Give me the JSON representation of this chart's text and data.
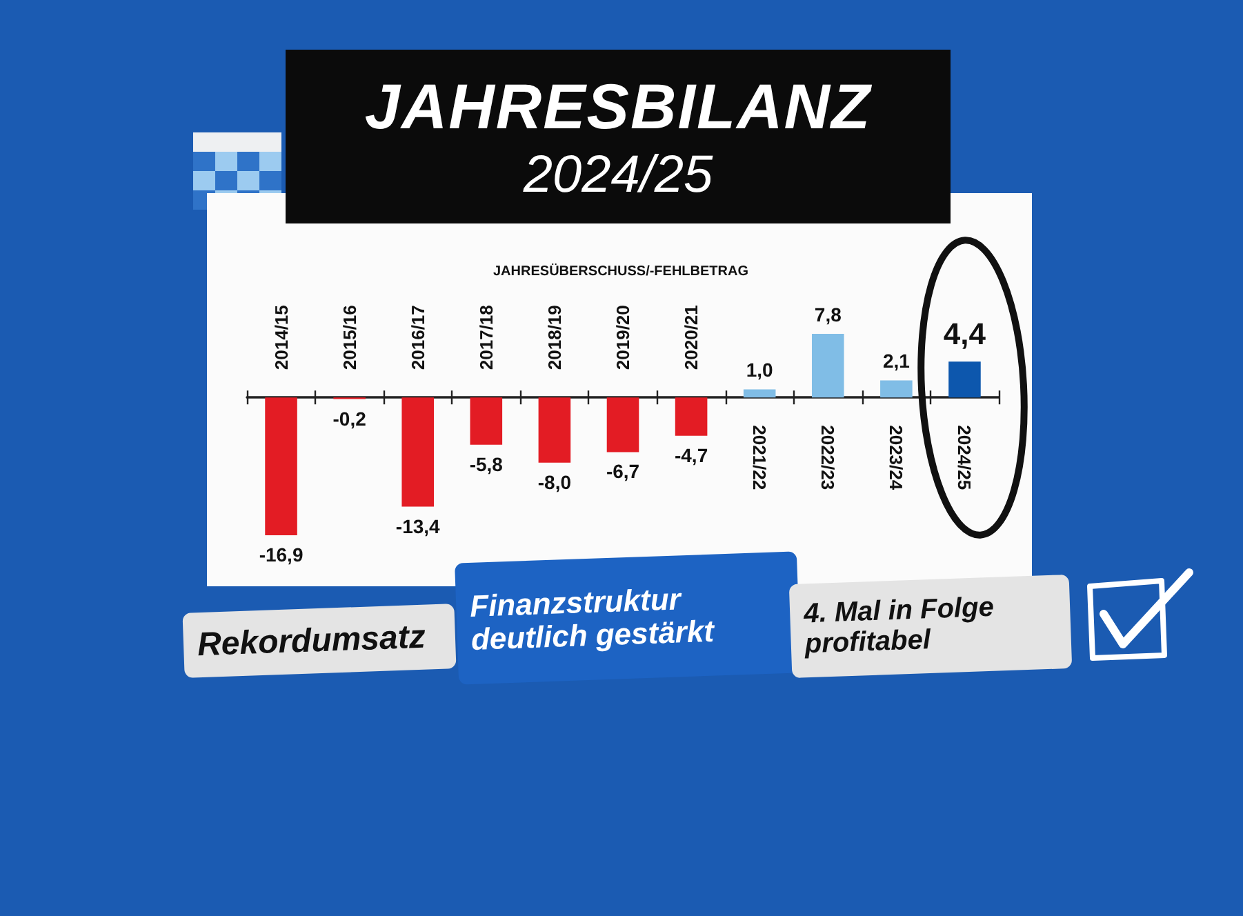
{
  "chart_data": {
    "type": "bar",
    "title": "JAHRESBILANZ",
    "subtitle": "2024/25",
    "ylabel": "JAHRESÜBERSCHUSS/-FEHLBETRAG",
    "categories": [
      "2014/15",
      "2015/16",
      "2016/17",
      "2017/18",
      "2018/19",
      "2019/20",
      "2020/21",
      "2021/22",
      "2022/23",
      "2023/24",
      "2024/25"
    ],
    "values": [
      -16.9,
      -0.2,
      -13.4,
      -5.8,
      -8.0,
      -6.7,
      -4.7,
      1.0,
      7.8,
      2.1,
      4.4
    ],
    "colors": [
      "#e31c24",
      "#e31c24",
      "#e31c24",
      "#e31c24",
      "#e31c24",
      "#e31c24",
      "#e31c24",
      "#80bde6",
      "#80bde6",
      "#80bde6",
      "#0d57ad"
    ],
    "value_labels": [
      "-16,9",
      "-0,2",
      "-13,4",
      "-5,8",
      "-8,0",
      "-6,7",
      "-4,7",
      "1,0",
      "7,8",
      "2,1",
      "4,4"
    ],
    "tick_labels": "x",
    "annotations": [
      "Rekordumsatz",
      "Finanzstruktur deutlich gestärkt",
      "4. Mal in Folge profitabel"
    ]
  }
}
